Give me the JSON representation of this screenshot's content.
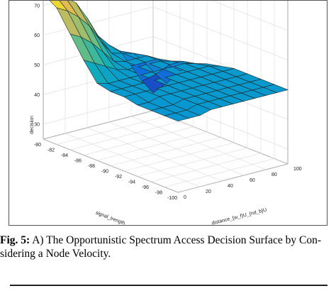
{
  "caption": {
    "label": "Fig. 5:",
    "text": " A) The Opportunistic Spectrum Access Decision Surface by Con-",
    "text2": "sidering a Node Velocity."
  },
  "chart_data": {
    "type": "surface",
    "title": "",
    "xlabel": "signal_trength",
    "ylabel": "distance_{w_f}U_{nd_b}U",
    "zlabel": "decision",
    "x_ticks": [
      -80,
      -82,
      -84,
      -86,
      -88,
      -90,
      -92,
      -94,
      -96,
      -98,
      -100
    ],
    "y_ticks": [
      0,
      20,
      40,
      60,
      80,
      100
    ],
    "z_ticks": [
      30,
      40,
      50,
      60,
      70
    ],
    "xlim": [
      -100,
      -80
    ],
    "ylim": [
      0,
      100
    ],
    "zlim": [
      25,
      80
    ],
    "grid": true,
    "colormap": "parula",
    "x": [
      -80,
      -82,
      -84,
      -86,
      -88,
      -90,
      -92,
      -94,
      -96,
      -98,
      -100
    ],
    "y": [
      0,
      10,
      20,
      30,
      40,
      50,
      60,
      70,
      80,
      90,
      100
    ],
    "z": [
      [
        74,
        71,
        64,
        57,
        51,
        50,
        50,
        49,
        49,
        49,
        49
      ],
      [
        73,
        69,
        62,
        55,
        50,
        50,
        50,
        49,
        49,
        49,
        49
      ],
      [
        71,
        66,
        59,
        53,
        50,
        50,
        50,
        50,
        49,
        49,
        49
      ],
      [
        68,
        62,
        55,
        51,
        50,
        50,
        50,
        50,
        50,
        50,
        50
      ],
      [
        62,
        56,
        51,
        50,
        50,
        50,
        50,
        50,
        50,
        50,
        50
      ],
      [
        55,
        51,
        50,
        50,
        50,
        50,
        50,
        50,
        50,
        50,
        50
      ],
      [
        51,
        50,
        50,
        50,
        50,
        50,
        50,
        50,
        50,
        50,
        50
      ],
      [
        48,
        49,
        50,
        50,
        50,
        50,
        50,
        50,
        50,
        50,
        50
      ],
      [
        42,
        45,
        48,
        49,
        50,
        50,
        50,
        50,
        50,
        50,
        50
      ],
      [
        36,
        40,
        45,
        48,
        49,
        50,
        50,
        50,
        50,
        50,
        50
      ],
      [
        31,
        36,
        42,
        46,
        48,
        49,
        50,
        50,
        50,
        50,
        50
      ]
    ]
  }
}
